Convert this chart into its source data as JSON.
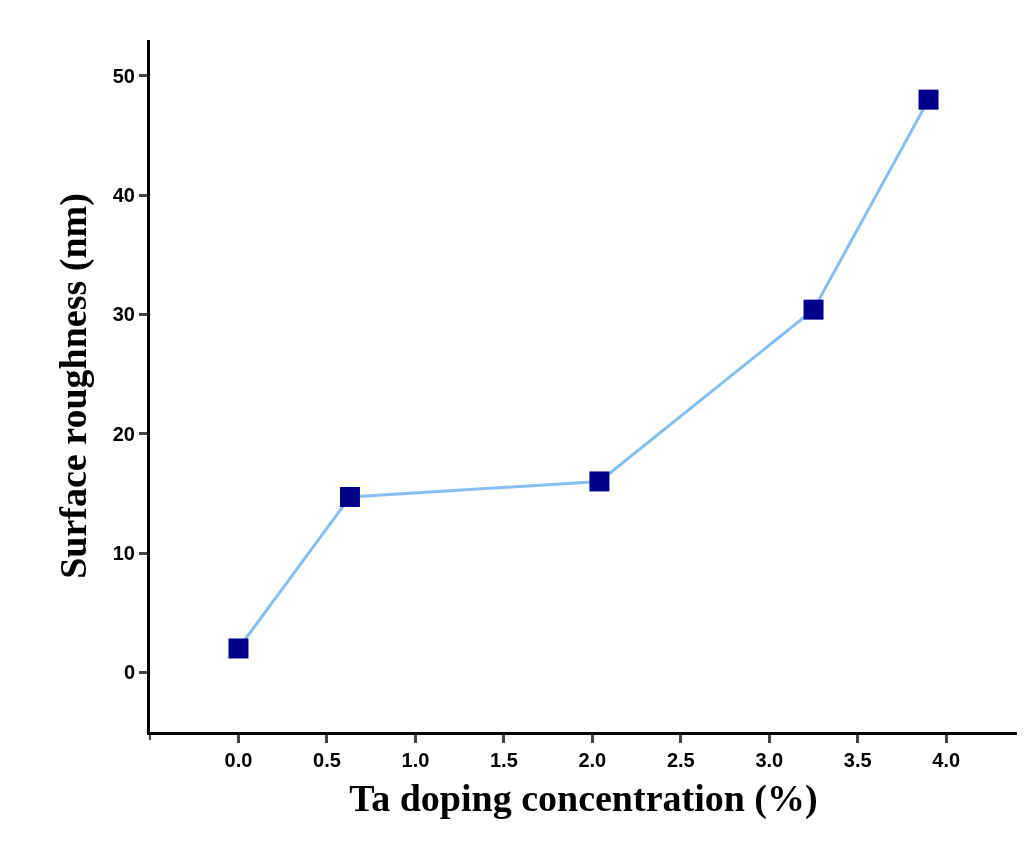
{
  "chart_data": {
    "type": "line",
    "xlabel": "Ta doping concentration (%)",
    "ylabel": "Surface roughness (nm)",
    "x": [
      0.0,
      0.63,
      2.04,
      3.25,
      3.9
    ],
    "series": [
      {
        "color": "#87bff0",
        "colors": [
          "#00008b",
          "#00008b",
          "#00008b",
          "#00008b",
          "#00008b"
        ],
        "values": [
          2.0,
          14.7,
          16.0,
          30.4,
          48.0
        ]
      }
    ],
    "xlim": [
      -0.5,
      4.4
    ],
    "xticks": [
      {
        "value": 0,
        "label": "0.0"
      },
      0.5,
      {
        "value": 1,
        "label": "1.0"
      },
      1.5,
      {
        "value": 2,
        "label": "2.0"
      },
      2.5,
      {
        "value": 3,
        "label": "3.0"
      },
      3.5,
      {
        "value": 4,
        "label": "4.0"
      }
    ],
    "ylim": [
      -5,
      53
    ],
    "yticks": [
      0,
      10,
      20,
      30,
      40,
      50
    ],
    "marker": "square",
    "line_style": "solid"
  }
}
